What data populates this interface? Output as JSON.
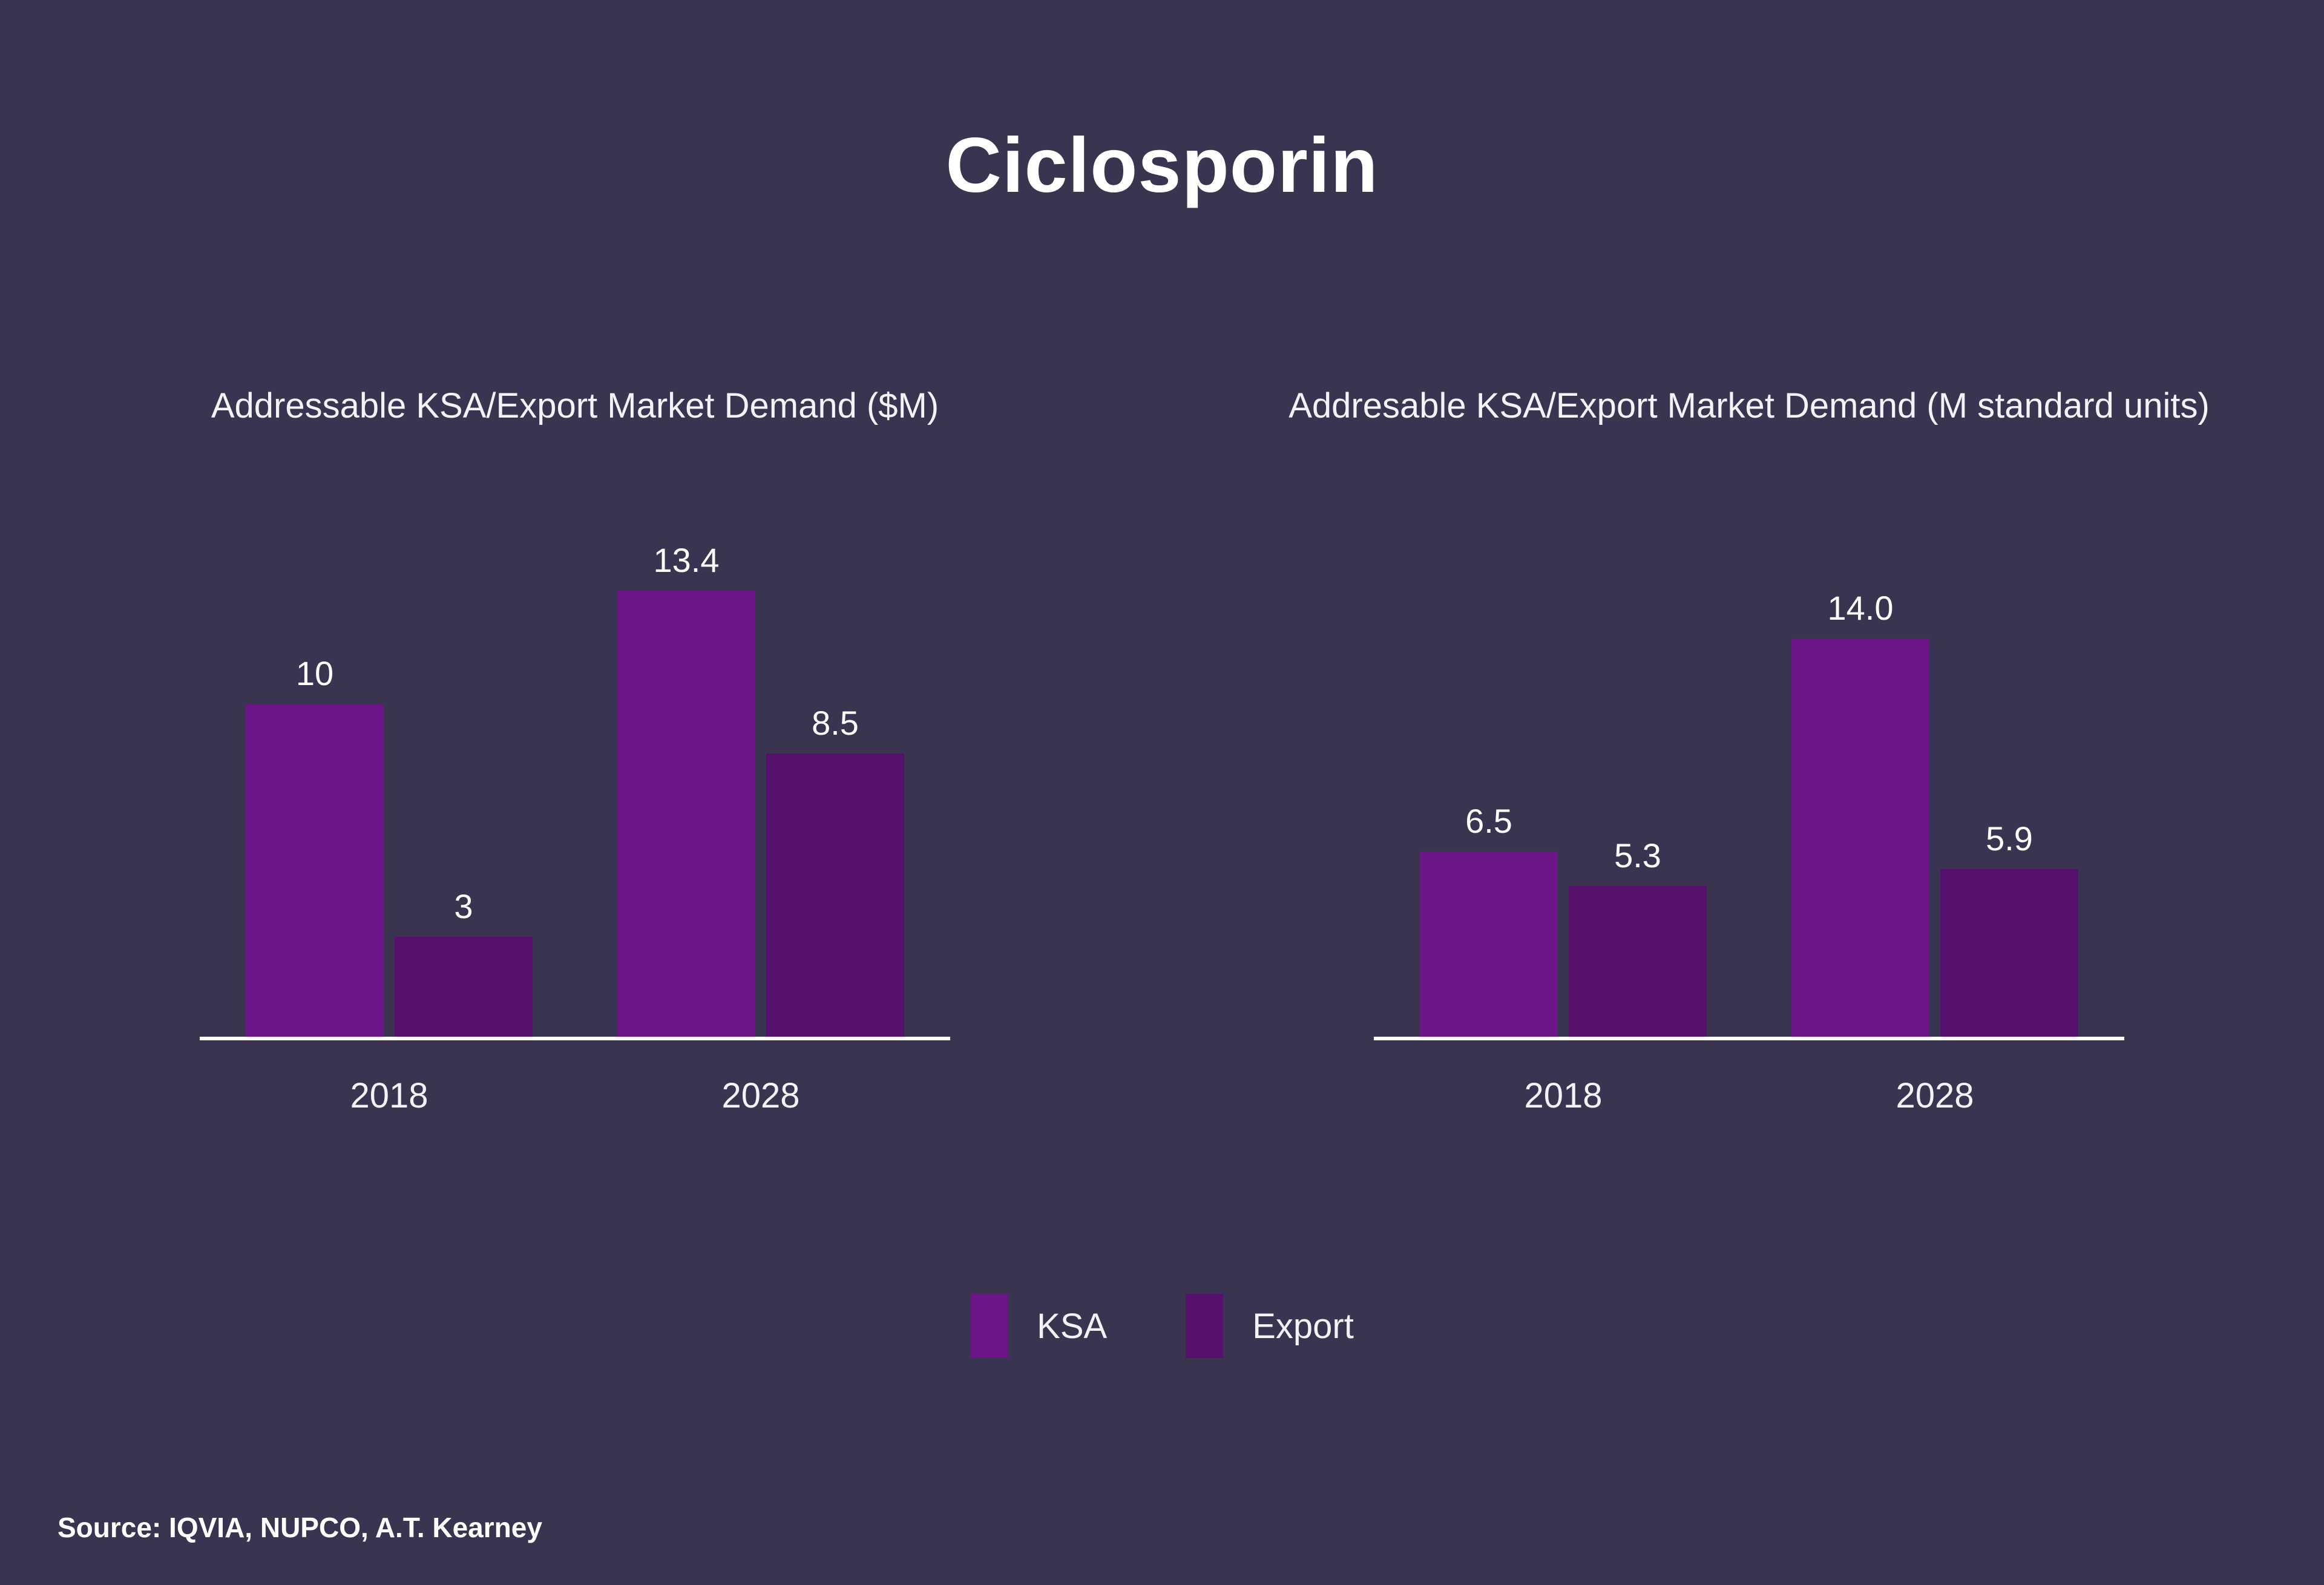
{
  "title": "Ciclosporin",
  "colors": {
    "background": "#3A3450",
    "ksa": "#6C1588",
    "export": "#56116F",
    "axis": "#FFFFFF",
    "text": "#FFFFFF"
  },
  "legend": {
    "position": "bottom-center",
    "items": [
      {
        "name": "KSA",
        "color": "#6C1588"
      },
      {
        "name": "Export",
        "color": "#56116F"
      }
    ]
  },
  "source": "Source: IQVIA, NUPCO, A.T. Kearney",
  "chart_data": [
    {
      "type": "bar",
      "title": "Addressable KSA/Export Market Demand ($M)",
      "categories": [
        "2018",
        "2028"
      ],
      "series": [
        {
          "name": "KSA",
          "color": "#6C1588",
          "values": [
            10,
            13.4
          ],
          "labels": [
            "10",
            "13.4"
          ]
        },
        {
          "name": "Export",
          "color": "#56116F",
          "values": [
            3,
            8.5
          ],
          "labels": [
            "3",
            "8.5"
          ]
        }
      ],
      "xlabel": "",
      "ylabel": "",
      "ylim": [
        0,
        15
      ],
      "grid": false,
      "value_labels_shown": true
    },
    {
      "type": "bar",
      "title": "Addresable KSA/Export Market Demand (M standard units)",
      "categories": [
        "2018",
        "2028"
      ],
      "series": [
        {
          "name": "KSA",
          "color": "#6C1588",
          "values": [
            6.5,
            14.0
          ],
          "labels": [
            "6.5",
            "14.0"
          ]
        },
        {
          "name": "Export",
          "color": "#56116F",
          "values": [
            5.3,
            5.9
          ],
          "labels": [
            "5.3",
            "5.9"
          ]
        }
      ],
      "xlabel": "",
      "ylabel": "",
      "ylim": [
        0,
        18
      ],
      "grid": false,
      "value_labels_shown": true
    }
  ]
}
